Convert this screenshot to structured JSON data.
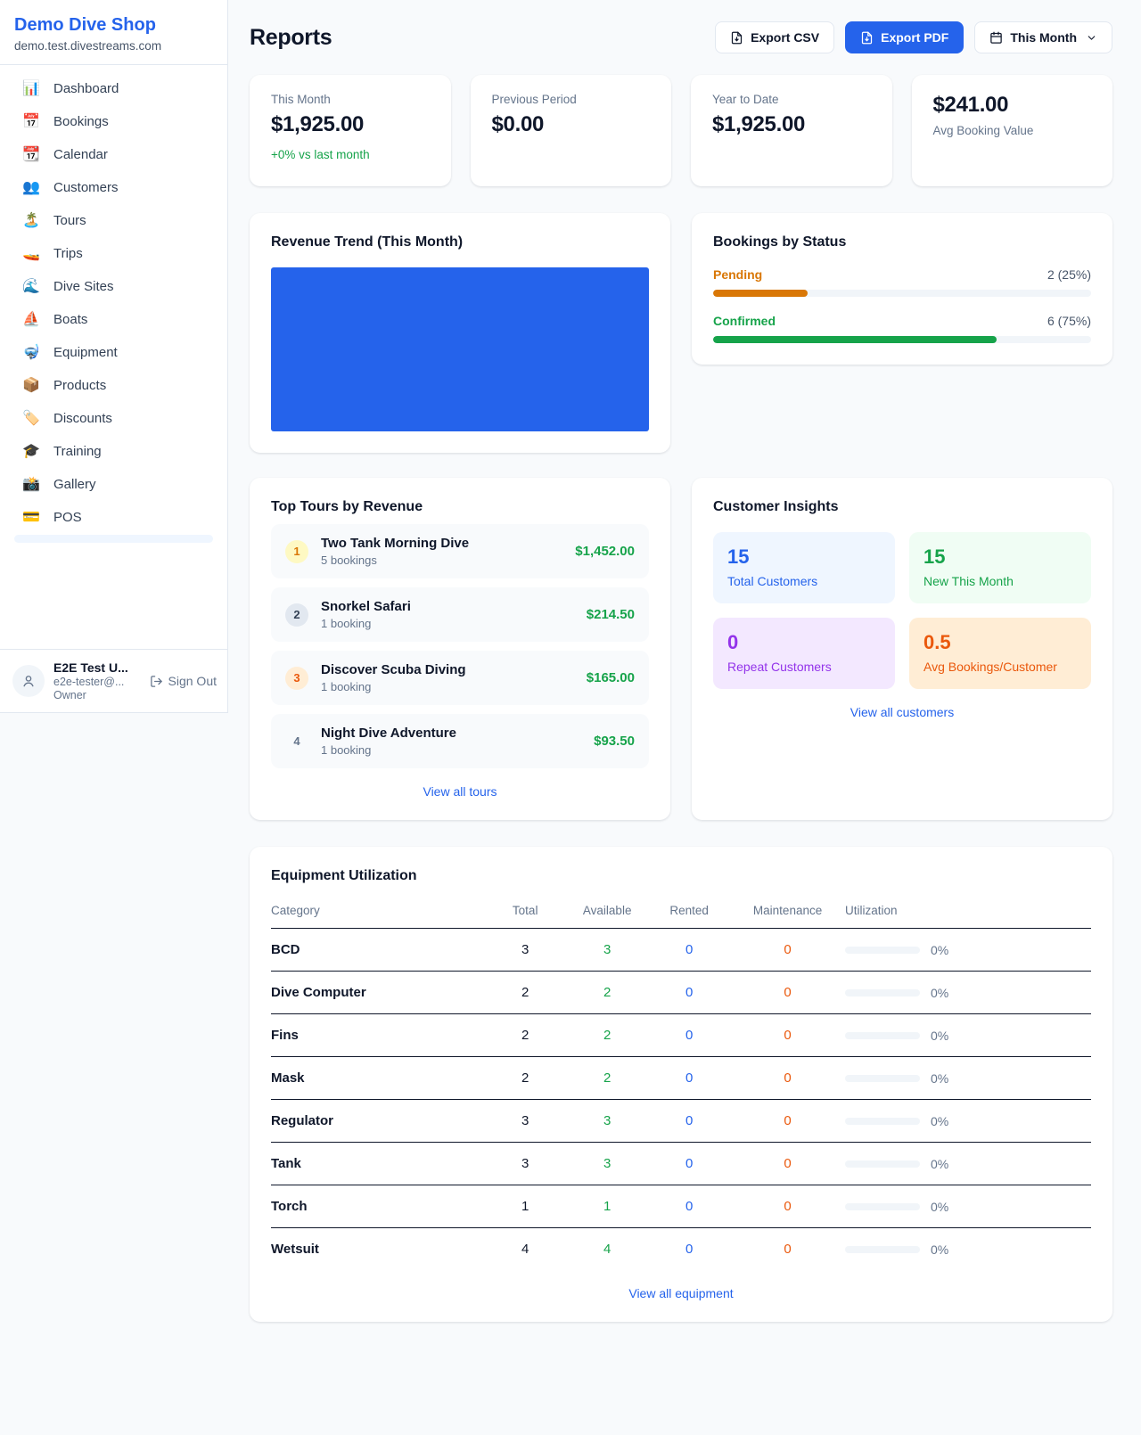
{
  "colors": {
    "accent": "#2563eb",
    "positive_green": "#16a34a",
    "pending_orange": "#d97706",
    "maintenance_orange": "#ea580c",
    "repeat_purple": "#9333ea"
  },
  "sidebar": {
    "brand": {
      "name": "Demo Dive Shop",
      "domain": "demo.test.divestreams.com"
    },
    "nav": [
      {
        "label": "Dashboard",
        "icon": "📊"
      },
      {
        "label": "Bookings",
        "icon": "📅"
      },
      {
        "label": "Calendar",
        "icon": "📆"
      },
      {
        "label": "Customers",
        "icon": "👥"
      },
      {
        "label": "Tours",
        "icon": "🏝️"
      },
      {
        "label": "Trips",
        "icon": "🚤"
      },
      {
        "label": "Dive Sites",
        "icon": "🌊"
      },
      {
        "label": "Boats",
        "icon": "⛵"
      },
      {
        "label": "Equipment",
        "icon": "🤿"
      },
      {
        "label": "Products",
        "icon": "📦"
      },
      {
        "label": "Discounts",
        "icon": "🏷️"
      },
      {
        "label": "Training",
        "icon": "🎓"
      },
      {
        "label": "Gallery",
        "icon": "📸"
      },
      {
        "label": "POS",
        "icon": "💳"
      }
    ],
    "user": {
      "name": "E2E Test U...",
      "email": "e2e-tester@...",
      "role": "Owner",
      "sign_out": "Sign Out"
    }
  },
  "header": {
    "title": "Reports",
    "export_csv": "Export CSV",
    "export_pdf": "Export PDF",
    "period": "This Month"
  },
  "stats": [
    {
      "label": "This Month",
      "value": "$1,925.00",
      "delta": "+0% vs last month"
    },
    {
      "label": "Previous Period",
      "value": "$0.00"
    },
    {
      "label": "Year to Date",
      "value": "$1,925.00"
    },
    {
      "label": "Avg Booking Value",
      "value": "$241.00"
    }
  ],
  "revenue_trend": {
    "title": "Revenue Trend (This Month)",
    "bar_color": "#2563eb"
  },
  "status": {
    "title": "Bookings by Status",
    "rows": [
      {
        "label": "Pending",
        "count": "2 (25%)",
        "pct": 25
      },
      {
        "label": "Confirmed",
        "count": "6 (75%)",
        "pct": 75
      }
    ]
  },
  "tours": {
    "title": "Top Tours by Revenue",
    "items": [
      {
        "rank": "1",
        "name": "Two Tank Morning Dive",
        "sub": "5 bookings",
        "amount": "$1,452.00"
      },
      {
        "rank": "2",
        "name": "Snorkel Safari",
        "sub": "1 booking",
        "amount": "$214.50"
      },
      {
        "rank": "3",
        "name": "Discover Scuba Diving",
        "sub": "1 booking",
        "amount": "$165.00"
      },
      {
        "rank": "4",
        "name": "Night Dive Adventure",
        "sub": "1 booking",
        "amount": "$93.50"
      }
    ],
    "view_all": "View all tours"
  },
  "insights": {
    "title": "Customer Insights",
    "tiles": [
      {
        "value": "15",
        "label": "Total Customers"
      },
      {
        "value": "15",
        "label": "New This Month"
      },
      {
        "value": "0",
        "label": "Repeat Customers"
      },
      {
        "value": "0.5",
        "label": "Avg Bookings/Customer"
      }
    ],
    "view_all": "View all customers"
  },
  "equipment": {
    "title": "Equipment Utilization",
    "columns": [
      "Category",
      "Total",
      "Available",
      "Rented",
      "Maintenance",
      "Utilization"
    ],
    "rows": [
      {
        "category": "BCD",
        "total": "3",
        "available": "3",
        "rented": "0",
        "maintenance": "0",
        "utilization": "0%"
      },
      {
        "category": "Dive Computer",
        "total": "2",
        "available": "2",
        "rented": "0",
        "maintenance": "0",
        "utilization": "0%"
      },
      {
        "category": "Fins",
        "total": "2",
        "available": "2",
        "rented": "0",
        "maintenance": "0",
        "utilization": "0%"
      },
      {
        "category": "Mask",
        "total": "2",
        "available": "2",
        "rented": "0",
        "maintenance": "0",
        "utilization": "0%"
      },
      {
        "category": "Regulator",
        "total": "3",
        "available": "3",
        "rented": "0",
        "maintenance": "0",
        "utilization": "0%"
      },
      {
        "category": "Tank",
        "total": "3",
        "available": "3",
        "rented": "0",
        "maintenance": "0",
        "utilization": "0%"
      },
      {
        "category": "Torch",
        "total": "1",
        "available": "1",
        "rented": "0",
        "maintenance": "0",
        "utilization": "0%"
      },
      {
        "category": "Wetsuit",
        "total": "4",
        "available": "4",
        "rented": "0",
        "maintenance": "0",
        "utilization": "0%"
      }
    ],
    "view_all": "View all equipment"
  }
}
